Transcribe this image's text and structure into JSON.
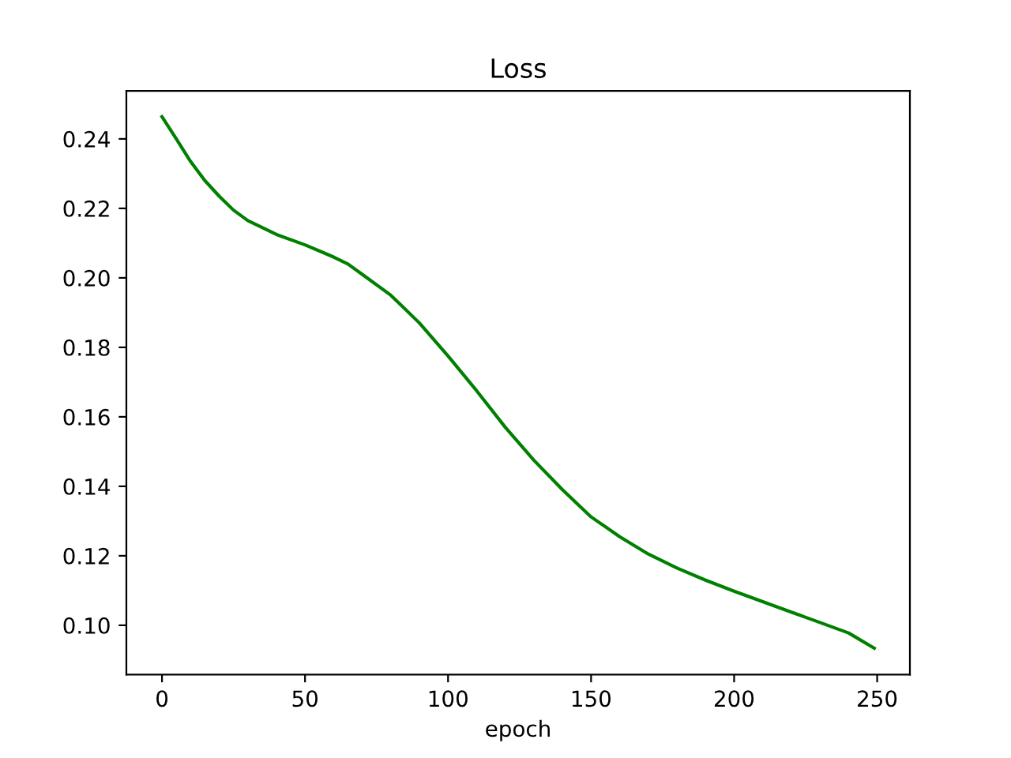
{
  "chart_data": {
    "type": "line",
    "title": "Loss",
    "xlabel": "epoch",
    "x": [
      0,
      5,
      10,
      15,
      20,
      25,
      30,
      40,
      50,
      60,
      65,
      70,
      80,
      90,
      100,
      110,
      120,
      130,
      140,
      150,
      160,
      170,
      180,
      190,
      200,
      210,
      220,
      230,
      240,
      249
    ],
    "series": [
      {
        "color": "#008000",
        "values": [
          0.2464,
          0.24,
          0.2335,
          0.228,
          0.2235,
          0.2195,
          0.2165,
          0.2125,
          0.2095,
          0.206,
          0.204,
          0.201,
          0.195,
          0.187,
          0.1775,
          0.1675,
          0.157,
          0.1475,
          0.139,
          0.1312,
          0.1255,
          0.1205,
          0.1165,
          0.113,
          0.1098,
          0.1068,
          0.1038,
          0.1008,
          0.0978,
          0.0934
        ]
      }
    ],
    "xlim": [
      -12.45,
      261.45
    ],
    "ylim": [
      0.0858,
      0.2538
    ],
    "xticks": [
      0,
      50,
      100,
      150,
      200,
      250
    ],
    "yticks": [
      {
        "value": 0.1,
        "label": "0.10"
      },
      {
        "value": 0.12,
        "label": "0.12"
      },
      {
        "value": 0.14,
        "label": "0.14"
      },
      {
        "value": 0.16,
        "label": "0.16"
      },
      {
        "value": 0.18,
        "label": "0.18"
      },
      {
        "value": 0.2,
        "label": "0.20"
      },
      {
        "value": 0.22,
        "label": "0.22"
      },
      {
        "value": 0.24,
        "label": "0.24"
      }
    ],
    "grid": false,
    "legend": false,
    "marker": "none",
    "line_style": "solid"
  }
}
